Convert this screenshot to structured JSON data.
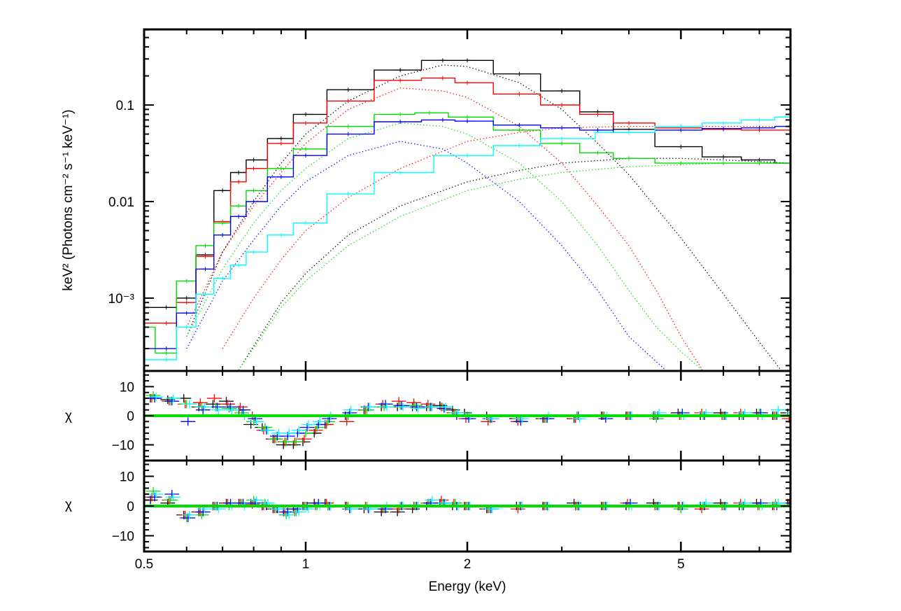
{
  "chart_data": [
    {
      "type": "line",
      "panel": "spectrum",
      "xlabel": "Energy (keV)",
      "ylabel": "keV² (Photons cm⁻² s⁻¹ keV⁻¹)",
      "xscale": "log",
      "yscale": "log",
      "xlim": [
        0.5,
        8
      ],
      "ylim": [
        0.000176,
        0.607
      ],
      "x_ticks": [
        "0.5",
        "1",
        "2",
        "5"
      ],
      "x_tick_values": [
        0.5,
        1,
        2,
        5
      ],
      "y_ticks": [
        "0.1",
        "0.01",
        "10⁻³"
      ],
      "y_tick_values": [
        0.1,
        0.01,
        0.001
      ],
      "grid": false,
      "series": [
        {
          "color": "#000000",
          "style": "model-step",
          "x": [
            0.5,
            0.55,
            0.6,
            0.65,
            0.7,
            0.75,
            0.8,
            0.9,
            1.0,
            1.2,
            1.5,
            1.8,
            2,
            2.5,
            3,
            3.5,
            4,
            5,
            6,
            7,
            8
          ],
          "y": [
            0.0008,
            0.0008,
            0.001,
            0.0028,
            0.013,
            0.02,
            0.027,
            0.045,
            0.08,
            0.144,
            0.23,
            0.29,
            0.29,
            0.21,
            0.14,
            0.085,
            0.056,
            0.037,
            0.029,
            0.027,
            0.025
          ]
        },
        {
          "color": "#000000",
          "style": "dotted",
          "x": [
            0.6,
            0.7,
            0.8,
            0.9,
            1.0,
            1.2,
            1.5,
            1.8,
            2,
            2.5,
            3,
            3.5,
            4,
            5,
            6,
            7,
            7.7
          ],
          "y": [
            0.0004,
            0.003,
            0.01,
            0.025,
            0.05,
            0.11,
            0.2,
            0.26,
            0.25,
            0.17,
            0.09,
            0.04,
            0.019,
            0.0042,
            0.0011,
            0.00035,
            0.000176
          ]
        },
        {
          "color": "#000000",
          "style": "dotted",
          "x": [
            0.75,
            0.9,
            1.0,
            1.2,
            1.5,
            2,
            2.5,
            3,
            4,
            5,
            6,
            8
          ],
          "y": [
            0.00018,
            0.0009,
            0.0018,
            0.0045,
            0.009,
            0.016,
            0.021,
            0.025,
            0.028,
            0.028,
            0.027,
            0.025
          ]
        },
        {
          "color": "#ff0000",
          "style": "model-step",
          "x": [
            0.5,
            0.55,
            0.6,
            0.65,
            0.7,
            0.75,
            0.8,
            0.9,
            1.0,
            1.2,
            1.5,
            1.8,
            2,
            2.5,
            3,
            3.5,
            4,
            5,
            6,
            7,
            8
          ],
          "y": [
            0.00055,
            0.00055,
            0.0009,
            0.0027,
            0.0062,
            0.016,
            0.022,
            0.04,
            0.065,
            0.11,
            0.18,
            0.19,
            0.17,
            0.13,
            0.1,
            0.08,
            0.065,
            0.058,
            0.056,
            0.055,
            0.055
          ]
        },
        {
          "color": "#ff0000",
          "style": "dotted",
          "x": [
            0.6,
            0.7,
            0.8,
            0.9,
            1.0,
            1.2,
            1.5,
            1.8,
            2,
            2.5,
            3,
            3.5,
            4,
            4.5,
            5,
            5.5
          ],
          "y": [
            0.0005,
            0.003,
            0.009,
            0.02,
            0.04,
            0.09,
            0.15,
            0.14,
            0.12,
            0.06,
            0.025,
            0.009,
            0.0035,
            0.0012,
            0.0004,
            0.000176
          ]
        },
        {
          "color": "#ff0000",
          "style": "dotted",
          "x": [
            0.7,
            0.8,
            0.9,
            1.0,
            1.2,
            1.5,
            2,
            2.5,
            3,
            4,
            5,
            6,
            8
          ],
          "y": [
            0.0003,
            0.001,
            0.0025,
            0.005,
            0.011,
            0.022,
            0.042,
            0.052,
            0.058,
            0.06,
            0.06,
            0.06,
            0.06
          ]
        },
        {
          "color": "#00dd00",
          "style": "model-step",
          "x": [
            0.5,
            0.55,
            0.6,
            0.65,
            0.7,
            0.75,
            0.8,
            0.9,
            1.0,
            1.2,
            1.5,
            1.7,
            2,
            2.5,
            3,
            3.5,
            4,
            5,
            6,
            7,
            8
          ],
          "y": [
            0.0005,
            0.00027,
            0.0015,
            0.0035,
            0.006,
            0.009,
            0.013,
            0.022,
            0.035,
            0.06,
            0.08,
            0.083,
            0.075,
            0.055,
            0.04,
            0.032,
            0.028,
            0.025,
            0.025,
            0.025,
            0.025
          ]
        },
        {
          "color": "#00dd00",
          "style": "dotted",
          "x": [
            0.6,
            0.7,
            0.8,
            0.9,
            1.0,
            1.2,
            1.5,
            1.8,
            2,
            2.5,
            3,
            3.5,
            4,
            4.5,
            5,
            5.5
          ],
          "y": [
            0.0004,
            0.002,
            0.006,
            0.013,
            0.022,
            0.045,
            0.065,
            0.06,
            0.05,
            0.025,
            0.01,
            0.0035,
            0.0012,
            0.0005,
            0.00028,
            0.000176
          ]
        },
        {
          "color": "#00dd00",
          "style": "dotted",
          "x": [
            0.75,
            0.9,
            1.0,
            1.2,
            1.5,
            2,
            2.5,
            3,
            4,
            5,
            6,
            8
          ],
          "y": [
            0.00018,
            0.0008,
            0.0015,
            0.0035,
            0.007,
            0.013,
            0.017,
            0.02,
            0.023,
            0.024,
            0.025,
            0.025
          ]
        },
        {
          "color": "#0000ff",
          "style": "model-step",
          "x": [
            0.5,
            0.55,
            0.6,
            0.65,
            0.7,
            0.75,
            0.8,
            0.9,
            1.0,
            1.2,
            1.5,
            1.8,
            2,
            2.5,
            3,
            3.5,
            4,
            5,
            6,
            7,
            8
          ],
          "y": [
            0.0003,
            0.0003,
            0.0007,
            0.002,
            0.0045,
            0.007,
            0.01,
            0.018,
            0.03,
            0.05,
            0.067,
            0.07,
            0.068,
            0.062,
            0.058,
            0.055,
            0.052,
            0.055,
            0.057,
            0.058,
            0.06
          ]
        },
        {
          "color": "#0000ff",
          "style": "dotted",
          "x": [
            0.6,
            0.7,
            0.8,
            0.9,
            1.0,
            1.2,
            1.5,
            1.8,
            2,
            2.5,
            3,
            3.5,
            4,
            4.7
          ],
          "y": [
            0.0003,
            0.0015,
            0.004,
            0.009,
            0.016,
            0.03,
            0.042,
            0.035,
            0.025,
            0.01,
            0.0035,
            0.0012,
            0.0004,
            0.000176
          ]
        },
        {
          "color": "#00ffff",
          "style": "model-step",
          "x": [
            0.5,
            0.55,
            0.6,
            0.65,
            0.7,
            0.75,
            0.8,
            0.9,
            1.0,
            1.2,
            1.5,
            2,
            2.5,
            3,
            4,
            5,
            6,
            7,
            8
          ],
          "y": [
            0.00023,
            0.00023,
            0.0005,
            0.0011,
            0.0016,
            0.0022,
            0.003,
            0.0045,
            0.006,
            0.012,
            0.02,
            0.03,
            0.038,
            0.045,
            0.052,
            0.06,
            0.065,
            0.07,
            0.075
          ]
        }
      ]
    },
    {
      "type": "scatter",
      "panel": "residuals-1",
      "ylabel": "χ",
      "xscale": "log",
      "xlim": [
        0.5,
        8
      ],
      "ylim": [
        -15.4,
        15.4
      ],
      "y_ticks": [
        "10",
        "0",
        "−10"
      ],
      "y_tick_values": [
        10,
        0,
        -10
      ],
      "zero_line_color": "#00dd00",
      "x": [
        0.52,
        0.56,
        0.6,
        0.64,
        0.68,
        0.72,
        0.76,
        0.8,
        0.84,
        0.88,
        0.92,
        0.96,
        1.0,
        1.05,
        1.1,
        1.2,
        1.3,
        1.4,
        1.5,
        1.6,
        1.7,
        1.8,
        1.9,
        2.0,
        2.2,
        2.5,
        2.8,
        3.2,
        3.6,
        4.0,
        4.5,
        5.0,
        5.5,
        6.0,
        6.5,
        7.0,
        7.5,
        8.0
      ],
      "series": [
        {
          "color": "#000000",
          "values": [
            6,
            5.5,
            6,
            3,
            4,
            5,
            2,
            -3,
            -4,
            -8,
            -10,
            -10,
            -9,
            -6,
            -3,
            0,
            2,
            3,
            3,
            3,
            3,
            3.5,
            2,
            1,
            0,
            -1,
            -1,
            -1,
            0,
            0,
            0,
            1,
            0,
            1,
            0,
            1,
            0,
            1
          ]
        },
        {
          "color": "#ff0000",
          "values": [
            6,
            5,
            4,
            4.5,
            6,
            4,
            3,
            0,
            -5,
            -8,
            -9,
            -9,
            -8,
            -5,
            -3,
            -2,
            2,
            4,
            5,
            4.5,
            4,
            3,
            1,
            -1,
            -2,
            -2,
            -1,
            -1,
            0,
            0,
            0,
            0,
            1,
            0,
            1,
            0,
            0,
            -1
          ]
        },
        {
          "color": "#00dd00",
          "values": [
            7,
            5,
            4,
            3,
            3,
            2.5,
            1,
            -2,
            -4,
            -8,
            -9,
            -9,
            -6,
            -4,
            -2,
            0,
            2,
            3,
            3.5,
            3.5,
            3,
            3,
            1,
            0,
            -1,
            -1,
            -1,
            0,
            0,
            0,
            -1,
            0,
            0,
            0,
            0,
            1,
            0,
            0
          ]
        },
        {
          "color": "#0000ff",
          "values": [
            6,
            5,
            -2,
            2,
            3,
            3,
            2,
            -1,
            -5,
            -7,
            -7,
            -6,
            -4,
            -3,
            -1,
            1,
            3,
            4,
            3.5,
            3,
            3,
            2.5,
            0,
            -1,
            -1,
            -2,
            -1,
            0,
            -1,
            0,
            0,
            1,
            0,
            0,
            0,
            1,
            0,
            0
          ]
        },
        {
          "color": "#00ffff",
          "values": [
            6.5,
            6,
            4,
            3,
            2,
            2,
            0,
            -2,
            -5,
            -6,
            -6,
            -5,
            -3,
            -2,
            0,
            2,
            3,
            3,
            3,
            2.5,
            3,
            3,
            1,
            0,
            -1,
            -1,
            0,
            -1,
            0,
            0,
            1,
            0,
            1,
            0,
            1,
            0,
            2,
            1
          ]
        }
      ]
    },
    {
      "type": "scatter",
      "panel": "residuals-2",
      "ylabel": "χ",
      "xscale": "log",
      "xlim": [
        0.5,
        8
      ],
      "ylim": [
        -15.3,
        15.3
      ],
      "y_ticks": [
        "10",
        "0",
        "−10"
      ],
      "y_tick_values": [
        10,
        0,
        -10
      ],
      "zero_line_color": "#00dd00",
      "x": [
        0.52,
        0.56,
        0.6,
        0.64,
        0.68,
        0.72,
        0.76,
        0.8,
        0.84,
        0.88,
        0.92,
        0.96,
        1.0,
        1.05,
        1.1,
        1.2,
        1.3,
        1.4,
        1.5,
        1.6,
        1.7,
        1.8,
        1.9,
        2.0,
        2.2,
        2.5,
        2.8,
        3.2,
        3.6,
        4.0,
        4.5,
        5.0,
        5.5,
        6.0,
        6.5,
        7.0,
        7.5,
        8.0
      ],
      "series": [
        {
          "color": "#000000",
          "values": [
            2,
            1,
            -3,
            -2,
            0,
            1,
            1,
            1,
            0,
            -1,
            -2,
            -1,
            0,
            1,
            1,
            0,
            -1,
            -2,
            -2,
            -1,
            0,
            1,
            0,
            0,
            -1,
            0,
            0,
            1,
            0,
            0,
            1,
            0,
            0,
            1,
            0,
            1,
            0,
            1
          ]
        },
        {
          "color": "#ff0000",
          "values": [
            3,
            2,
            -3,
            -2,
            0,
            1,
            1,
            0.5,
            0,
            -1,
            -2,
            -2,
            0,
            0,
            1,
            0,
            0,
            -1,
            -1,
            0,
            1,
            2,
            1,
            0,
            -1,
            -1,
            0,
            0,
            0,
            1,
            0,
            0,
            -1,
            0,
            1,
            0,
            0,
            1
          ]
        },
        {
          "color": "#00dd00",
          "values": [
            5,
            2,
            -4,
            -3,
            0,
            0,
            1,
            2,
            1,
            -1,
            -3,
            -2,
            0,
            0,
            0,
            0,
            0,
            -1,
            0,
            0,
            1,
            1,
            1,
            0,
            -1,
            0,
            0,
            0,
            0,
            0,
            0,
            -1,
            0,
            0,
            0,
            0,
            1,
            0
          ]
        },
        {
          "color": "#0000ff",
          "values": [
            3,
            4,
            -4,
            -2,
            0,
            1,
            1,
            1,
            0,
            -1,
            -2,
            -1,
            0,
            1,
            0,
            -1,
            -1,
            -1,
            0,
            0,
            1,
            1,
            0,
            0,
            -1,
            0,
            0,
            0,
            0,
            1,
            0,
            0,
            0,
            0,
            0,
            1,
            0,
            1
          ]
        },
        {
          "color": "#00ffff",
          "values": [
            4,
            3,
            -3,
            -1,
            -1,
            0,
            0,
            2,
            1,
            -1,
            -3,
            -2,
            -1,
            0,
            0,
            -1,
            -1,
            0,
            0,
            0,
            2,
            1,
            0,
            0,
            -1,
            0,
            0,
            0,
            0,
            0,
            0,
            0,
            1,
            0,
            1,
            0,
            1,
            0
          ]
        }
      ]
    }
  ]
}
